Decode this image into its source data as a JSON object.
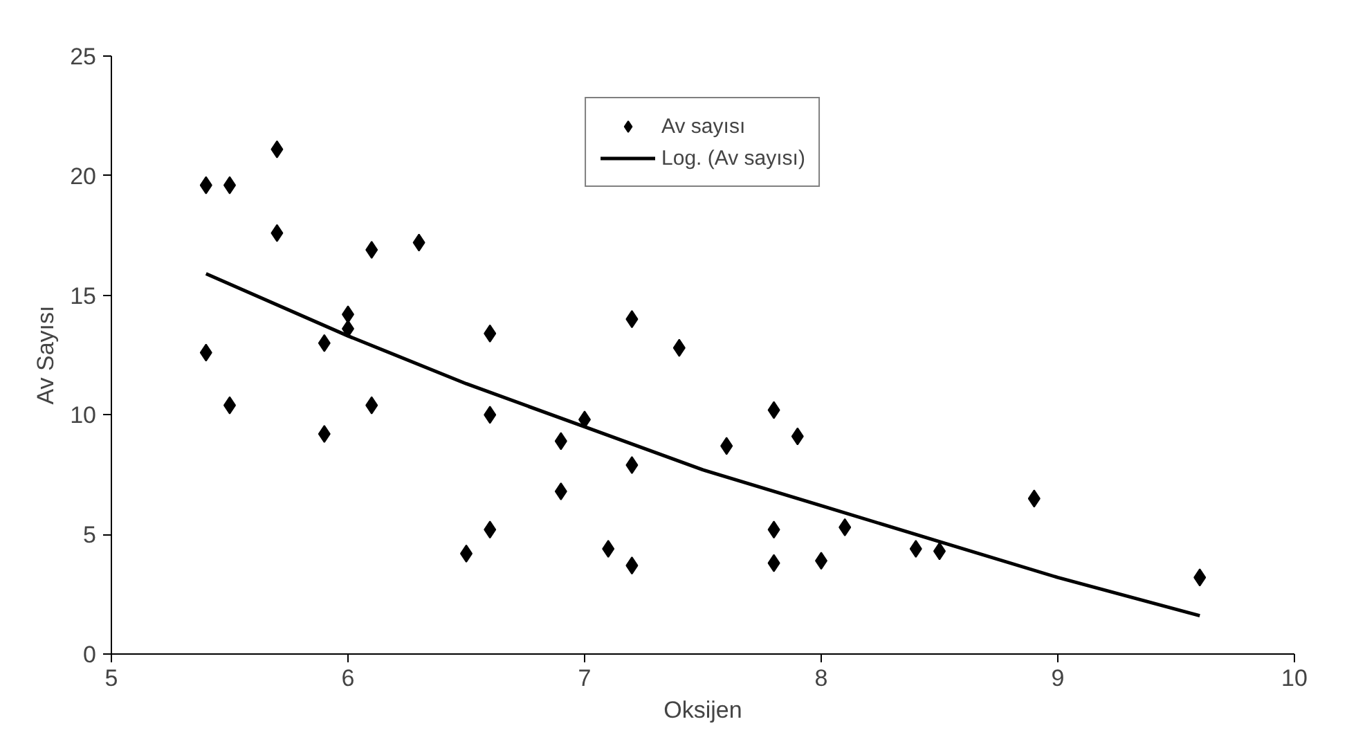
{
  "chart_data": {
    "type": "scatter",
    "xlabel": "Oksijen",
    "ylabel": "Av Sayısı",
    "xlim": [
      5,
      10
    ],
    "ylim": [
      0,
      25
    ],
    "xticks": [
      5,
      6,
      7,
      8,
      9,
      10
    ],
    "yticks": [
      0,
      5,
      10,
      15,
      20,
      25
    ],
    "grid": false,
    "legend": "top",
    "marker": "diamond",
    "series": [
      {
        "name": "Av sayısı",
        "color": "#000000",
        "x": [
          5.4,
          5.5,
          5.7,
          5.7,
          5.4,
          5.5,
          5.9,
          5.9,
          6.0,
          6.0,
          6.1,
          6.1,
          6.3,
          6.6,
          6.6,
          6.6,
          6.5,
          6.9,
          6.9,
          7.0,
          7.1,
          7.2,
          7.2,
          7.2,
          7.4,
          7.6,
          7.8,
          7.8,
          7.8,
          7.9,
          8.0,
          8.1,
          8.4,
          8.5,
          8.9,
          9.6
        ],
        "values": [
          19.6,
          19.6,
          21.1,
          17.6,
          12.6,
          10.4,
          13.0,
          9.2,
          14.2,
          13.6,
          16.9,
          10.4,
          17.2,
          13.4,
          10.0,
          5.2,
          4.2,
          6.8,
          8.9,
          9.8,
          4.4,
          14.0,
          7.9,
          3.7,
          12.8,
          8.7,
          10.2,
          5.2,
          3.8,
          9.1,
          3.9,
          5.3,
          4.4,
          4.3,
          6.5,
          3.2
        ]
      },
      {
        "name": "Log. (Av sayısı)",
        "type": "line",
        "color": "#000000",
        "marker": "none",
        "line_style": "solid",
        "x": [
          5.4,
          6.0,
          6.5,
          7.0,
          7.5,
          8.0,
          8.5,
          9.0,
          9.6
        ],
        "values": [
          15.9,
          13.3,
          11.3,
          9.5,
          7.7,
          6.2,
          4.7,
          3.2,
          1.6
        ]
      }
    ]
  }
}
